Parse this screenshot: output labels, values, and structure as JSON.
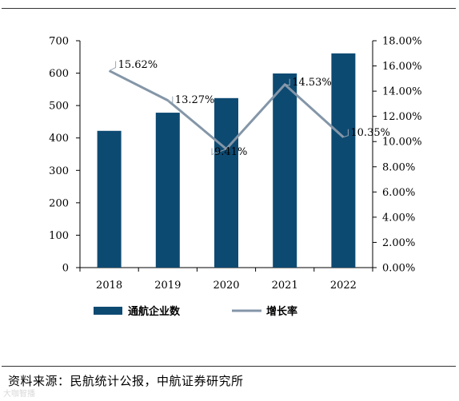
{
  "chart_data": {
    "type": "bar",
    "categories": [
      "2018",
      "2019",
      "2020",
      "2021",
      "2022"
    ],
    "series": [
      {
        "name": "通航企业数",
        "type": "bar",
        "axis": "left",
        "color": "#0d4a72",
        "values": [
          422,
          478,
          523,
          599,
          661
        ]
      },
      {
        "name": "增长率",
        "type": "line",
        "axis": "right",
        "color": "#8496a8",
        "values": [
          15.62,
          13.27,
          9.41,
          14.53,
          10.35
        ],
        "labels": [
          "15.62%",
          "13.27%",
          "9.41%",
          "14.53%",
          "10.35%"
        ]
      }
    ],
    "y_left": {
      "ylim": [
        0,
        700
      ],
      "ticks": [
        "0",
        "100",
        "200",
        "300",
        "400",
        "500",
        "600",
        "700"
      ]
    },
    "y_right": {
      "ylim": [
        0,
        18
      ],
      "ticks": [
        "0.00%",
        "2.00%",
        "4.00%",
        "6.00%",
        "8.00%",
        "10.00%",
        "12.00%",
        "14.00%",
        "16.00%",
        "18.00%"
      ]
    },
    "legend_position": "bottom",
    "grid": false
  },
  "source_text": "资料来源：民航统计公报，中航证券研究所",
  "watermark_text": "大咖智播"
}
